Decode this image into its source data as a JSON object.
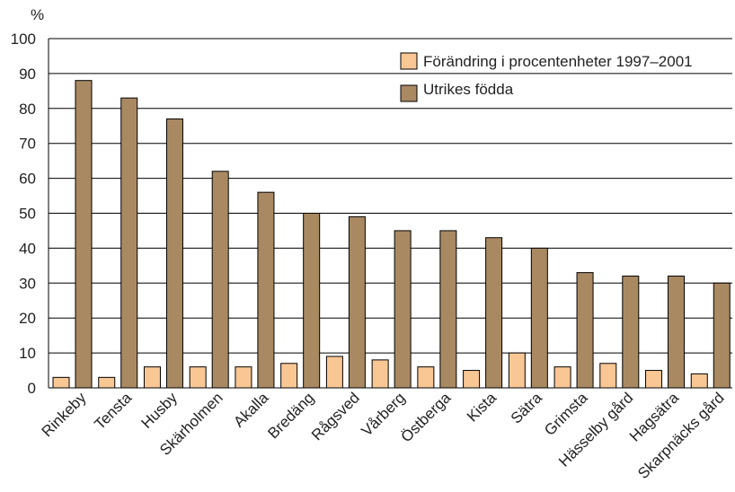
{
  "chart_data": {
    "type": "bar",
    "ylabel": "%",
    "ylim": [
      0,
      100
    ],
    "yticks": [
      0,
      10,
      20,
      30,
      40,
      50,
      60,
      70,
      80,
      90,
      100
    ],
    "grid": true,
    "legend_position": "top-right",
    "categories": [
      "Rinkeby",
      "Tensta",
      "Husby",
      "Skärholmen",
      "Akalla",
      "Bredäng",
      "Rågsved",
      "Vårberg",
      "Östberga",
      "Kista",
      "Sätra",
      "Grimsta",
      "Hässelby gård",
      "Hagsätra",
      "Skarpnäcks gård"
    ],
    "series": [
      {
        "name": "Förändring i procentenheter 1997–2001",
        "color": "#f9c794",
        "values": [
          3,
          3,
          6,
          6,
          6,
          7,
          9,
          8,
          6,
          5,
          10,
          6,
          7,
          5,
          4
        ]
      },
      {
        "name": "Utrikes födda",
        "color": "#a98962",
        "values": [
          88,
          83,
          77,
          62,
          56,
          50,
          49,
          45,
          45,
          43,
          40,
          33,
          32,
          32,
          30
        ]
      }
    ]
  }
}
